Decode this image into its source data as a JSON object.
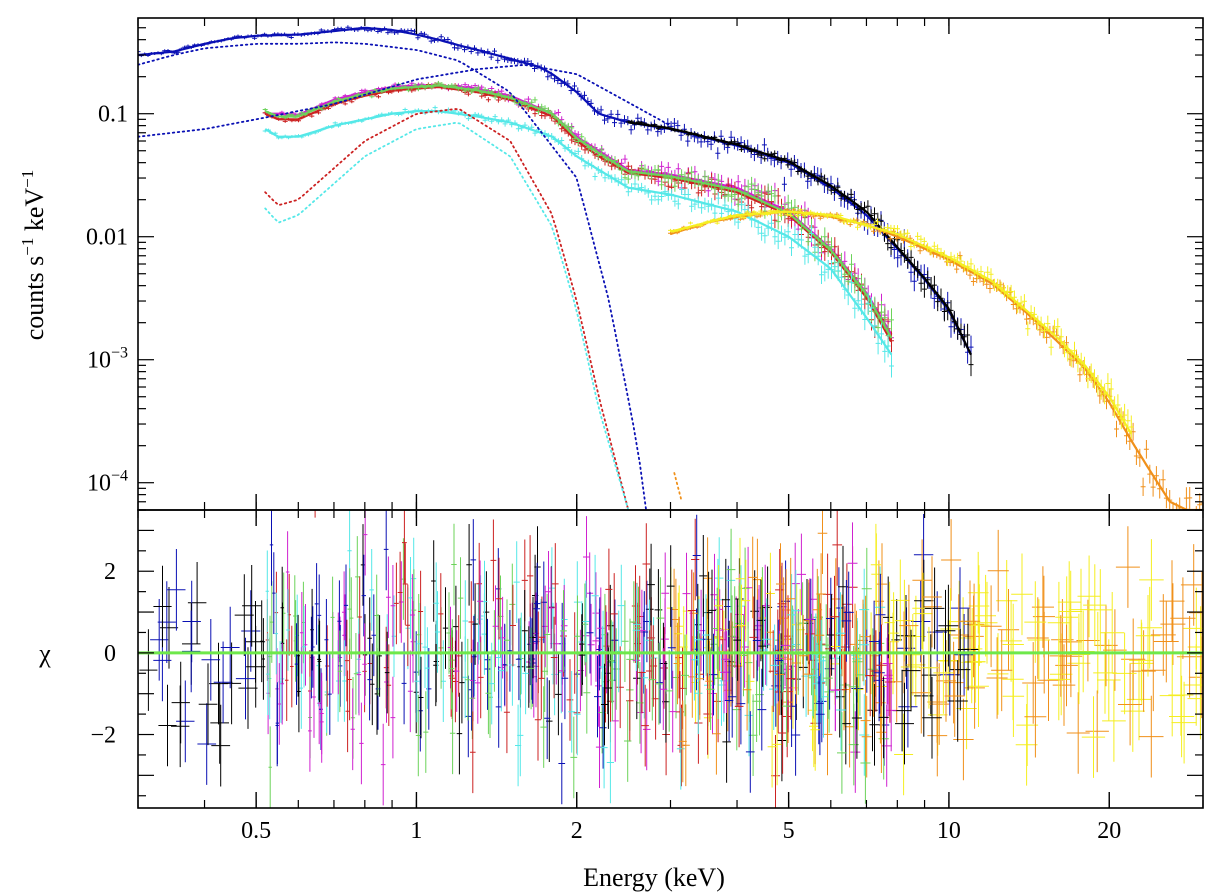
{
  "chart_data": [
    {
      "type": "line",
      "panel": "spectrum",
      "title": "",
      "ylabel_parts": {
        "base": "counts s",
        "exp1": "−1",
        "mid": " keV",
        "exp2": "−1"
      },
      "xscale": "log",
      "yscale": "log",
      "xlim": [
        0.3,
        30
      ],
      "ylim": [
        6e-05,
        0.6
      ],
      "yticks": [
        {
          "value": 0.1,
          "label": "0.1"
        },
        {
          "value": 0.01,
          "label": "0.01"
        },
        {
          "value": 0.001,
          "base": "10",
          "exp": "−3"
        },
        {
          "value": 0.0001,
          "base": "10",
          "exp": "−4"
        }
      ],
      "series": [
        {
          "name": "blue-data",
          "color": "#0a10b4",
          "x": [
            0.3,
            0.35,
            0.4,
            0.45,
            0.5,
            0.6,
            0.7,
            0.8,
            0.9,
            1.0,
            1.1,
            1.2,
            1.3,
            1.5,
            1.7,
            1.8,
            2.0,
            2.2,
            2.5,
            3.0,
            4.0,
            5.0,
            6.0,
            7.0,
            8.0,
            9.0,
            10.0,
            11.0
          ],
          "values": [
            0.3,
            0.32,
            0.37,
            0.41,
            0.43,
            0.44,
            0.47,
            0.5,
            0.48,
            0.44,
            0.4,
            0.36,
            0.33,
            0.28,
            0.24,
            0.21,
            0.15,
            0.1,
            0.085,
            0.075,
            0.055,
            0.04,
            0.025,
            0.015,
            0.008,
            0.0045,
            0.0025,
            0.0011
          ]
        },
        {
          "name": "black-data",
          "color": "#000000",
          "x": [
            2.5,
            3.0,
            4.0,
            5.0,
            6.0,
            7.0,
            8.0,
            9.0,
            10.0,
            11.0
          ],
          "values": [
            0.085,
            0.076,
            0.056,
            0.041,
            0.026,
            0.016,
            0.0082,
            0.0046,
            0.0026,
            0.0011
          ]
        },
        {
          "name": "magenta-data",
          "color": "#d022d0",
          "x": [
            0.52,
            0.55,
            0.6,
            0.7,
            0.8,
            0.9,
            1.0,
            1.1,
            1.3,
            1.5,
            1.8,
            2.0,
            2.2,
            2.5,
            3.0,
            4.0,
            5.0,
            6.0,
            7.0,
            7.8
          ],
          "values": [
            0.1,
            0.1,
            0.098,
            0.13,
            0.15,
            0.165,
            0.17,
            0.17,
            0.16,
            0.14,
            0.1,
            0.065,
            0.05,
            0.035,
            0.032,
            0.025,
            0.016,
            0.008,
            0.0035,
            0.0016
          ]
        },
        {
          "name": "red-data",
          "color": "#cc2222",
          "x": [
            0.52,
            0.55,
            0.6,
            0.7,
            0.8,
            0.9,
            1.0,
            1.1,
            1.3,
            1.5,
            1.8,
            2.0,
            2.2,
            2.5,
            3.0,
            4.0,
            5.0,
            6.0,
            7.0,
            7.8
          ],
          "values": [
            0.1,
            0.09,
            0.09,
            0.12,
            0.14,
            0.155,
            0.16,
            0.165,
            0.15,
            0.13,
            0.095,
            0.06,
            0.045,
            0.033,
            0.03,
            0.023,
            0.015,
            0.0075,
            0.0032,
            0.0014
          ]
        },
        {
          "name": "green-data",
          "color": "#6cd35a",
          "x": [
            0.52,
            0.55,
            0.6,
            0.7,
            0.8,
            0.9,
            1.0,
            1.1,
            1.3,
            1.5,
            1.8,
            2.0,
            2.2,
            2.5,
            3.0,
            4.0,
            5.0,
            6.0,
            7.0,
            7.8
          ],
          "values": [
            0.105,
            0.095,
            0.095,
            0.125,
            0.145,
            0.16,
            0.165,
            0.17,
            0.155,
            0.135,
            0.1,
            0.063,
            0.048,
            0.034,
            0.031,
            0.024,
            0.0155,
            0.0078,
            0.0034,
            0.0015
          ]
        },
        {
          "name": "cyan-data",
          "color": "#55e8e8",
          "x": [
            0.52,
            0.55,
            0.6,
            0.7,
            0.8,
            0.9,
            1.0,
            1.1,
            1.3,
            1.5,
            1.8,
            2.0,
            2.2,
            2.5,
            3.0,
            4.0,
            5.0,
            6.0,
            7.0,
            7.8
          ],
          "values": [
            0.075,
            0.065,
            0.065,
            0.08,
            0.09,
            0.1,
            0.105,
            0.105,
            0.095,
            0.085,
            0.065,
            0.045,
            0.035,
            0.025,
            0.022,
            0.016,
            0.01,
            0.0055,
            0.0022,
            0.0011
          ]
        },
        {
          "name": "orange-data",
          "color": "#f0901a",
          "x": [
            3.0,
            3.5,
            4.0,
            4.5,
            5.0,
            6.0,
            7.0,
            8.0,
            9.0,
            10.0,
            12.0,
            14.0,
            16.0,
            18.0,
            20.0,
            22.0,
            24.0,
            26.0,
            28.0,
            30.0
          ],
          "values": [
            0.0105,
            0.013,
            0.0145,
            0.0155,
            0.016,
            0.0145,
            0.0125,
            0.01,
            0.008,
            0.0065,
            0.0042,
            0.0024,
            0.0014,
            0.00085,
            0.00045,
            0.00022,
            0.00012,
            7e-05,
            6e-05,
            6e-05
          ]
        },
        {
          "name": "yellow-data",
          "color": "#f5ee20",
          "x": [
            3.0,
            4.0,
            5.0,
            6.0,
            8.0,
            10.0,
            12.0,
            14.0,
            16.0,
            18.0,
            20.0,
            22.0
          ],
          "values": [
            0.011,
            0.015,
            0.016,
            0.015,
            0.0105,
            0.0068,
            0.0044,
            0.0025,
            0.0015,
            0.0009,
            0.0005,
            0.00025
          ]
        },
        {
          "name": "blue-soft-component",
          "color": "#0a10b4",
          "style": "dotted",
          "x": [
            0.3,
            0.35,
            0.4,
            0.5,
            0.6,
            0.7,
            0.8,
            1.0,
            1.2,
            1.5,
            2.0,
            2.3,
            2.6,
            2.7
          ],
          "values": [
            0.25,
            0.3,
            0.34,
            0.37,
            0.37,
            0.38,
            0.37,
            0.33,
            0.27,
            0.15,
            0.03,
            0.003,
            0.0002,
            6e-05
          ]
        },
        {
          "name": "blue-hard-component",
          "color": "#0a10b4",
          "style": "dotted",
          "x": [
            0.3,
            0.4,
            0.5,
            0.7,
            1.0,
            1.3,
            1.6,
            2.0,
            3.0
          ],
          "values": [
            0.065,
            0.075,
            0.09,
            0.12,
            0.19,
            0.23,
            0.25,
            0.21,
            0.08
          ]
        },
        {
          "name": "red-soft-component",
          "color": "#cc2222",
          "style": "dotted",
          "x": [
            0.52,
            0.55,
            0.6,
            0.8,
            1.0,
            1.2,
            1.5,
            1.8,
            2.0,
            2.2,
            2.5
          ],
          "values": [
            0.023,
            0.018,
            0.02,
            0.06,
            0.1,
            0.11,
            0.06,
            0.015,
            0.003,
            0.0005,
            6e-05
          ]
        },
        {
          "name": "cyan-soft-component",
          "color": "#55e8e8",
          "style": "dotted",
          "x": [
            0.52,
            0.55,
            0.6,
            0.8,
            1.0,
            1.2,
            1.5,
            1.8,
            2.0,
            2.2,
            2.5
          ],
          "values": [
            0.017,
            0.013,
            0.015,
            0.045,
            0.075,
            0.085,
            0.045,
            0.012,
            0.0025,
            0.0004,
            6e-05
          ]
        },
        {
          "name": "orange-component",
          "color": "#f0901a",
          "style": "dotted",
          "x": [
            3.05,
            3.15
          ],
          "values": [
            0.00012,
            7e-05
          ]
        }
      ]
    },
    {
      "type": "scatter",
      "panel": "residuals",
      "title": "",
      "xlabel": "Energy (keV)",
      "ylabel": "χ",
      "xscale": "log",
      "xlim": [
        0.3,
        30
      ],
      "ylim": [
        -3.8,
        3.5
      ],
      "xticks": [
        {
          "value": 0.5,
          "label": "0.5"
        },
        {
          "value": 1,
          "label": "1"
        },
        {
          "value": 2,
          "label": "2"
        },
        {
          "value": 5,
          "label": "5"
        },
        {
          "value": 10,
          "label": "10"
        },
        {
          "value": 20,
          "label": "20"
        }
      ],
      "yticks": [
        {
          "value": 2,
          "label": "2"
        },
        {
          "value": 0,
          "label": "0"
        },
        {
          "value": -2,
          "label": "−2"
        }
      ],
      "zero_line": {
        "value": 0,
        "color": "#6ee84a"
      },
      "series_colors": [
        "#000000",
        "#0a10b4",
        "#cc2222",
        "#6cd35a",
        "#d022d0",
        "#55e8e8",
        "#f0901a",
        "#f5ee20"
      ],
      "residual_sigma": 1.1
    }
  ]
}
